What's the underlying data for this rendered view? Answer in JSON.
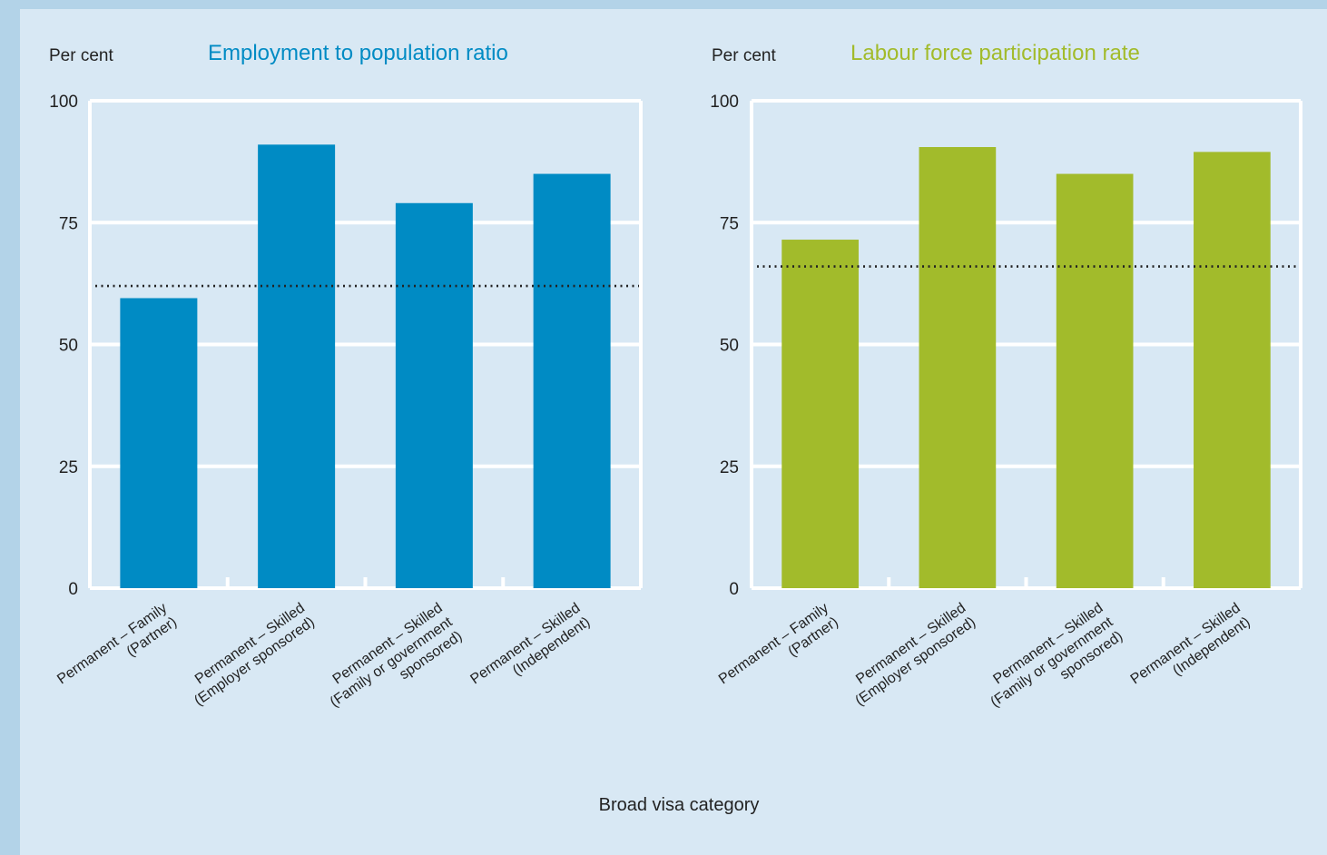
{
  "colors": {
    "background_outer": "#b3d3e8",
    "background_panel": "#d8e8f4",
    "gridline": "#ffffff",
    "average_line": "#222222"
  },
  "xlabel": "Broad visa category",
  "chart_data": [
    {
      "type": "bar",
      "title": "Employment to population ratio",
      "title_color": "#008bc4",
      "bar_color": "#008bc4",
      "ylabel": "Per cent",
      "ylim": [
        0,
        100
      ],
      "yticks": [
        "0",
        "25",
        "50",
        "75",
        "100"
      ],
      "categories": [
        [
          "Permanent – Family",
          "(Partner)"
        ],
        [
          "Permanent – Skilled",
          "(Employer sponsored)"
        ],
        [
          "Permanent – Skilled",
          "(Family or government",
          "sponsored)"
        ],
        [
          "Permanent – Skilled",
          "(Independent)"
        ]
      ],
      "values": [
        59.5,
        91,
        79,
        85
      ],
      "reference_line": 62,
      "grid": true
    },
    {
      "type": "bar",
      "title": "Labour force participation rate",
      "title_color": "#a2bb2b",
      "bar_color": "#a2bb2b",
      "ylabel": "Per cent",
      "ylim": [
        0,
        100
      ],
      "yticks": [
        "0",
        "25",
        "50",
        "75",
        "100"
      ],
      "categories": [
        [
          "Permanent – Family",
          "(Partner)"
        ],
        [
          "Permanent – Skilled",
          "(Employer sponsored)"
        ],
        [
          "Permanent – Skilled",
          "(Family or government",
          "sponsored)"
        ],
        [
          "Permanent – Skilled",
          "(Independent)"
        ]
      ],
      "values": [
        71.5,
        90.5,
        85,
        89.5
      ],
      "reference_line": 66,
      "grid": true
    }
  ]
}
